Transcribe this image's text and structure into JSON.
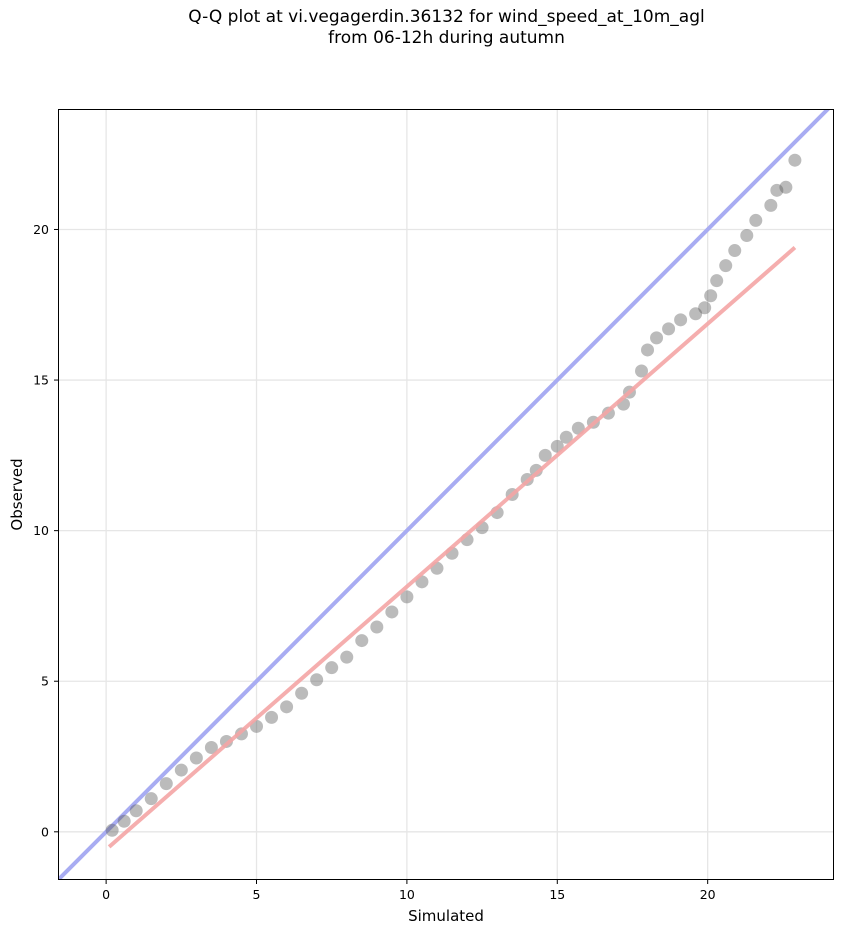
{
  "chart_data": {
    "type": "scatter",
    "title_lines": [
      "Q-Q plot at vi.vegagerdin.36132 for wind_speed_at_10m_agl",
      "from 06-12h during autumn"
    ],
    "xlabel": "Simulated",
    "ylabel": "Observed",
    "xlim": [
      -1.6,
      24.2
    ],
    "ylim": [
      -1.6,
      24.0
    ],
    "xticks": [
      0,
      5,
      10,
      15,
      20
    ],
    "yticks": [
      0,
      5,
      10,
      15,
      20
    ],
    "grid": true,
    "colors": {
      "points": "#555555",
      "identity_line": "#a8acf2",
      "fit_line": "#f4a5a5"
    },
    "identity_line": {
      "from": [
        -1.6,
        -1.6
      ],
      "to": [
        24.2,
        24.2
      ]
    },
    "fit_line": {
      "from": [
        0.1,
        -0.5
      ],
      "to": [
        22.9,
        19.4
      ]
    },
    "points": [
      [
        0.2,
        0.05
      ],
      [
        0.6,
        0.35
      ],
      [
        1.0,
        0.7
      ],
      [
        1.5,
        1.1
      ],
      [
        2.0,
        1.6
      ],
      [
        2.5,
        2.05
      ],
      [
        3.0,
        2.45
      ],
      [
        3.5,
        2.8
      ],
      [
        4.0,
        3.0
      ],
      [
        4.5,
        3.25
      ],
      [
        5.0,
        3.5
      ],
      [
        5.5,
        3.8
      ],
      [
        6.0,
        4.15
      ],
      [
        6.5,
        4.6
      ],
      [
        7.0,
        5.05
      ],
      [
        7.5,
        5.45
      ],
      [
        8.0,
        5.8
      ],
      [
        8.5,
        6.35
      ],
      [
        9.0,
        6.8
      ],
      [
        9.5,
        7.3
      ],
      [
        10.0,
        7.8
      ],
      [
        10.5,
        8.3
      ],
      [
        11.0,
        8.75
      ],
      [
        11.5,
        9.25
      ],
      [
        12.0,
        9.7
      ],
      [
        12.5,
        10.1
      ],
      [
        13.0,
        10.6
      ],
      [
        13.5,
        11.2
      ],
      [
        14.0,
        11.7
      ],
      [
        14.3,
        12.0
      ],
      [
        14.6,
        12.5
      ],
      [
        15.0,
        12.8
      ],
      [
        15.3,
        13.1
      ],
      [
        15.7,
        13.4
      ],
      [
        16.2,
        13.6
      ],
      [
        16.7,
        13.9
      ],
      [
        17.2,
        14.2
      ],
      [
        17.4,
        14.6
      ],
      [
        17.8,
        15.3
      ],
      [
        18.0,
        16.0
      ],
      [
        18.3,
        16.4
      ],
      [
        18.7,
        16.7
      ],
      [
        19.1,
        17.0
      ],
      [
        19.6,
        17.2
      ],
      [
        19.9,
        17.4
      ],
      [
        20.1,
        17.8
      ],
      [
        20.3,
        18.3
      ],
      [
        20.6,
        18.8
      ],
      [
        20.9,
        19.3
      ],
      [
        21.3,
        19.8
      ],
      [
        21.6,
        20.3
      ],
      [
        22.1,
        20.8
      ],
      [
        22.3,
        21.3
      ],
      [
        22.6,
        21.4
      ],
      [
        22.9,
        22.3
      ]
    ]
  }
}
